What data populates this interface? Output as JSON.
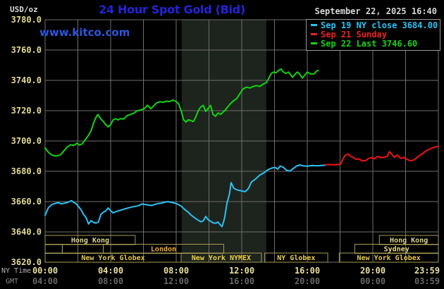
{
  "header": {
    "unit_label": "USD/oz",
    "title": "24 Hour Spot Gold (Bid)",
    "watermark": "www.kitco.com",
    "datetime": "September 22, 2025 16:40"
  },
  "legend": {
    "position": "top-right",
    "items": [
      {
        "id": "sep19",
        "text": "Sep 19 NY close 3684.00",
        "color": "#29c3f5"
      },
      {
        "id": "sep21",
        "text": "Sep 21 Sunday",
        "color": "#f02020"
      },
      {
        "id": "sep22",
        "text": "Sep 22 Last 3746.60",
        "color": "#17d417"
      }
    ]
  },
  "axes": {
    "y_ticks": [
      "3780.0",
      "3760.0",
      "3740.0",
      "3720.0",
      "3700.0",
      "3680.0",
      "3660.0",
      "3640.0",
      "3620.0"
    ],
    "x_rows": [
      {
        "label": "NY Time",
        "color": "#e8e09c",
        "label_color": "#b4b4b4",
        "ticks": [
          "00:00",
          "04:00",
          "08:00",
          "12:00",
          "16:00",
          "20:00",
          "23:59"
        ]
      },
      {
        "label": "GMT",
        "color": "#676767",
        "label_color": "#8a8a8a",
        "ticks": [
          "04:00",
          "08:00",
          "12:00",
          "16:00",
          "20:00",
          "00:00",
          "03:59"
        ]
      }
    ]
  },
  "sessions": [
    {
      "row": 0,
      "start_hour": 0,
      "end_hour": 5.5,
      "label": "Hong Kong",
      "color": "#d9d487"
    },
    {
      "row": 0,
      "start_hour": 20.4,
      "end_hour": 24,
      "label": "Hong Kong",
      "color": "#d9d487"
    },
    {
      "row": 1,
      "start_hour": 0,
      "end_hour": 1.05,
      "label": "",
      "color": "#e6dc8a"
    },
    {
      "row": 1,
      "start_hour": 1.05,
      "end_hour": 3.55,
      "label": "",
      "color": "#e6dc8a"
    },
    {
      "row": 1,
      "start_hour": 3.55,
      "end_hour": 10.9,
      "label": "London",
      "color": "#efa93a"
    },
    {
      "row": 1,
      "start_hour": 18.9,
      "end_hour": 24,
      "label": "Sydney",
      "color": "#e6dc8a"
    },
    {
      "row": 2,
      "start_hour": 0,
      "end_hour": 8.3,
      "label": "New York Globex",
      "color": "#e7c84e"
    },
    {
      "row": 2,
      "start_hour": 8.3,
      "end_hour": 13.2,
      "label": "New York NYMEX",
      "color": "#efd13e"
    },
    {
      "row": 2,
      "start_hour": 13.4,
      "end_hour": 17.25,
      "label": "NY Globex",
      "color": "#ead251"
    },
    {
      "row": 2,
      "start_hour": 17.95,
      "end_hour": 24,
      "label": "New York Globex",
      "color": "#e7c84e"
    }
  ],
  "colors": {
    "background": "#000000",
    "grid": "#6f6f6f",
    "plot_border": "#6f6f6f",
    "shaded_band": "#1d231d",
    "title_blue": "#2424d8",
    "kitco_blue": "#2d55dc",
    "date_text": "#d6d6d6",
    "unit_text": "#dcdcdc",
    "y_tick_text": "#e2da96",
    "session_border": "#a89a55",
    "legend_border": "#999999"
  },
  "chart_data": {
    "type": "line",
    "title": "24 Hour Spot Gold (Bid)",
    "xlabel": "NY Time",
    "ylabel": "USD/oz",
    "x_range_hours": [
      0,
      24
    ],
    "ylim": [
      3620,
      3780
    ],
    "y_tick_step": 20,
    "x_tick_step_hours": 2,
    "grid": true,
    "legend_position": "top-right",
    "nymex_shaded_hours": [
      8.33,
      13.5
    ],
    "prev_close": 3684.0,
    "last": 3746.6,
    "series": [
      {
        "id": "sep22",
        "name": "Sep 22 Last 3746.60",
        "color": "#0fd60f",
        "points": [
          [
            0,
            3695.5
          ],
          [
            0.2,
            3692.5
          ],
          [
            0.45,
            3690.5
          ],
          [
            0.7,
            3690
          ],
          [
            0.95,
            3691
          ],
          [
            1.15,
            3693.5
          ],
          [
            1.35,
            3696
          ],
          [
            1.55,
            3697.5
          ],
          [
            1.75,
            3697
          ],
          [
            1.95,
            3698.5
          ],
          [
            2.1,
            3697.3
          ],
          [
            2.25,
            3698
          ],
          [
            2.4,
            3700
          ],
          [
            2.6,
            3703
          ],
          [
            2.8,
            3706.5
          ],
          [
            2.95,
            3711.5
          ],
          [
            3.1,
            3715.5
          ],
          [
            3.22,
            3717.5
          ],
          [
            3.4,
            3714.5
          ],
          [
            3.55,
            3713
          ],
          [
            3.7,
            3710.8
          ],
          [
            3.85,
            3709.3
          ],
          [
            4,
            3710.8
          ],
          [
            4.15,
            3713.9
          ],
          [
            4.3,
            3714.7
          ],
          [
            4.45,
            3713.9
          ],
          [
            4.6,
            3714.7
          ],
          [
            4.8,
            3714.5
          ],
          [
            5,
            3716.7
          ],
          [
            5.2,
            3717.5
          ],
          [
            5.4,
            3718.3
          ],
          [
            5.6,
            3719.8
          ],
          [
            5.85,
            3720.5
          ],
          [
            6.05,
            3721.3
          ],
          [
            6.25,
            3723.6
          ],
          [
            6.45,
            3721.3
          ],
          [
            6.6,
            3722.8
          ],
          [
            6.8,
            3725.1
          ],
          [
            7,
            3725.9
          ],
          [
            7.2,
            3725.5
          ],
          [
            7.4,
            3726.3
          ],
          [
            7.6,
            3726
          ],
          [
            7.8,
            3727
          ],
          [
            8,
            3726
          ],
          [
            8.15,
            3724.5
          ],
          [
            8.3,
            3720
          ],
          [
            8.45,
            3714
          ],
          [
            8.6,
            3712.5
          ],
          [
            8.75,
            3714
          ],
          [
            8.9,
            3713.5
          ],
          [
            9.05,
            3712.8
          ],
          [
            9.2,
            3716
          ],
          [
            9.35,
            3720
          ],
          [
            9.5,
            3722.5
          ],
          [
            9.65,
            3723.5
          ],
          [
            9.8,
            3719.5
          ],
          [
            9.95,
            3721.5
          ],
          [
            10.1,
            3723.5
          ],
          [
            10.25,
            3717.5
          ],
          [
            10.4,
            3716.3
          ],
          [
            10.55,
            3718.5
          ],
          [
            10.7,
            3717.5
          ],
          [
            10.85,
            3719
          ],
          [
            11,
            3720.5
          ],
          [
            11.15,
            3722.5
          ],
          [
            11.3,
            3724.5
          ],
          [
            11.5,
            3726.5
          ],
          [
            11.7,
            3728
          ],
          [
            11.9,
            3731.5
          ],
          [
            12.1,
            3734.5
          ],
          [
            12.3,
            3735.5
          ],
          [
            12.5,
            3735
          ],
          [
            12.7,
            3736
          ],
          [
            12.9,
            3736.5
          ],
          [
            13.1,
            3736
          ],
          [
            13.3,
            3737.5
          ],
          [
            13.5,
            3738.5
          ],
          [
            13.65,
            3741.5
          ],
          [
            13.8,
            3744.5
          ],
          [
            13.95,
            3745.5
          ],
          [
            14.1,
            3745
          ],
          [
            14.25,
            3746.5
          ],
          [
            14.4,
            3747.5
          ],
          [
            14.55,
            3745.5
          ],
          [
            14.7,
            3744.5
          ],
          [
            14.85,
            3745.5
          ],
          [
            15,
            3743.5
          ],
          [
            15.1,
            3742
          ],
          [
            15.25,
            3744
          ],
          [
            15.4,
            3745.5
          ],
          [
            15.55,
            3744
          ],
          [
            15.7,
            3741.5
          ],
          [
            15.85,
            3743.5
          ],
          [
            16,
            3745.5
          ],
          [
            16.15,
            3744.5
          ],
          [
            16.3,
            3744
          ],
          [
            16.45,
            3744.5
          ],
          [
            16.55,
            3746
          ],
          [
            16.67,
            3746.6
          ]
        ]
      },
      {
        "id": "sep19",
        "name": "Sep 19 NY close 3684.00",
        "color": "#29c3f5",
        "points": [
          [
            0,
            3651
          ],
          [
            0.2,
            3656
          ],
          [
            0.4,
            3658
          ],
          [
            0.6,
            3658.8
          ],
          [
            0.8,
            3659.3
          ],
          [
            1,
            3658.5
          ],
          [
            1.2,
            3659
          ],
          [
            1.4,
            3659.6
          ],
          [
            1.6,
            3660.6
          ],
          [
            1.75,
            3659.5
          ],
          [
            1.9,
            3658.5
          ],
          [
            2.05,
            3656.5
          ],
          [
            2.2,
            3654.5
          ],
          [
            2.35,
            3651.5
          ],
          [
            2.5,
            3649.5
          ],
          [
            2.65,
            3645.2
          ],
          [
            2.8,
            3647.5
          ],
          [
            2.95,
            3646.3
          ],
          [
            3.1,
            3645.8
          ],
          [
            3.25,
            3646.5
          ],
          [
            3.4,
            3651.5
          ],
          [
            3.55,
            3653
          ],
          [
            3.7,
            3653.8
          ],
          [
            3.85,
            3655.8
          ],
          [
            4,
            3654
          ],
          [
            4.15,
            3652.5
          ],
          [
            4.3,
            3653.3
          ],
          [
            4.5,
            3654
          ],
          [
            4.7,
            3654.6
          ],
          [
            4.9,
            3655.3
          ],
          [
            5.1,
            3655.9
          ],
          [
            5.3,
            3656.4
          ],
          [
            5.5,
            3656.9
          ],
          [
            5.7,
            3657.3
          ],
          [
            5.9,
            3658.4
          ],
          [
            6.1,
            3658.1
          ],
          [
            6.3,
            3657.7
          ],
          [
            6.5,
            3657.4
          ],
          [
            6.7,
            3658.2
          ],
          [
            6.9,
            3658.7
          ],
          [
            7.1,
            3659
          ],
          [
            7.3,
            3659.6
          ],
          [
            7.5,
            3660
          ],
          [
            7.7,
            3659.5
          ],
          [
            7.9,
            3659
          ],
          [
            8.1,
            3658.3
          ],
          [
            8.3,
            3657
          ],
          [
            8.5,
            3655
          ],
          [
            8.7,
            3653.3
          ],
          [
            8.9,
            3651.2
          ],
          [
            9.1,
            3649.5
          ],
          [
            9.3,
            3648
          ],
          [
            9.5,
            3646.7
          ],
          [
            9.65,
            3647.3
          ],
          [
            9.8,
            3650.2
          ],
          [
            9.95,
            3648
          ],
          [
            10.1,
            3647
          ],
          [
            10.25,
            3646
          ],
          [
            10.4,
            3645.7
          ],
          [
            10.55,
            3646.5
          ],
          [
            10.7,
            3644.5
          ],
          [
            10.8,
            3643.5
          ],
          [
            10.95,
            3649
          ],
          [
            11.1,
            3659
          ],
          [
            11.25,
            3665
          ],
          [
            11.35,
            3672.5
          ],
          [
            11.5,
            3669
          ],
          [
            11.65,
            3668
          ],
          [
            11.8,
            3667.5
          ],
          [
            12,
            3667
          ],
          [
            12.2,
            3666.5
          ],
          [
            12.4,
            3668.5
          ],
          [
            12.6,
            3673
          ],
          [
            12.85,
            3675
          ],
          [
            13.1,
            3677.5
          ],
          [
            13.35,
            3679
          ],
          [
            13.6,
            3681
          ],
          [
            13.85,
            3682.2
          ],
          [
            14.05,
            3682.5
          ],
          [
            14.2,
            3681.4
          ],
          [
            14.35,
            3683.5
          ],
          [
            14.55,
            3682.5
          ],
          [
            14.75,
            3680.5
          ],
          [
            14.95,
            3680.2
          ],
          [
            15.15,
            3681.8
          ],
          [
            15.35,
            3683.5
          ],
          [
            15.55,
            3684.2
          ],
          [
            15.75,
            3683.6
          ],
          [
            16,
            3683.4
          ],
          [
            16.3,
            3683.8
          ],
          [
            16.6,
            3683.6
          ],
          [
            16.85,
            3683.8
          ],
          [
            17.1,
            3684
          ]
        ]
      },
      {
        "id": "sep21",
        "name": "Sep 21 Sunday",
        "color": "#f01414",
        "points": [
          [
            17.1,
            3684.3
          ],
          [
            17.4,
            3684.4
          ],
          [
            17.7,
            3684.3
          ],
          [
            17.9,
            3684.5
          ],
          [
            18.05,
            3685
          ],
          [
            18.15,
            3687.5
          ],
          [
            18.3,
            3690.5
          ],
          [
            18.5,
            3691.3
          ],
          [
            18.65,
            3689.8
          ],
          [
            18.8,
            3689.2
          ],
          [
            19,
            3687.8
          ],
          [
            19.15,
            3688.3
          ],
          [
            19.35,
            3686.8
          ],
          [
            19.55,
            3687
          ],
          [
            19.75,
            3688.5
          ],
          [
            19.95,
            3689
          ],
          [
            20.1,
            3688.3
          ],
          [
            20.3,
            3689.8
          ],
          [
            20.5,
            3689
          ],
          [
            20.7,
            3689.3
          ],
          [
            20.9,
            3690
          ],
          [
            21,
            3693
          ],
          [
            21.15,
            3691.5
          ],
          [
            21.3,
            3689.2
          ],
          [
            21.5,
            3690.7
          ],
          [
            21.7,
            3688.5
          ],
          [
            21.9,
            3689.1
          ],
          [
            22.1,
            3687.8
          ],
          [
            22.3,
            3686.9
          ],
          [
            22.5,
            3687.5
          ],
          [
            22.7,
            3689.1
          ],
          [
            22.9,
            3690.7
          ],
          [
            23.1,
            3692.2
          ],
          [
            23.3,
            3693.8
          ],
          [
            23.6,
            3695.3
          ],
          [
            23.85,
            3696.2
          ],
          [
            24,
            3696.5
          ]
        ]
      }
    ]
  }
}
